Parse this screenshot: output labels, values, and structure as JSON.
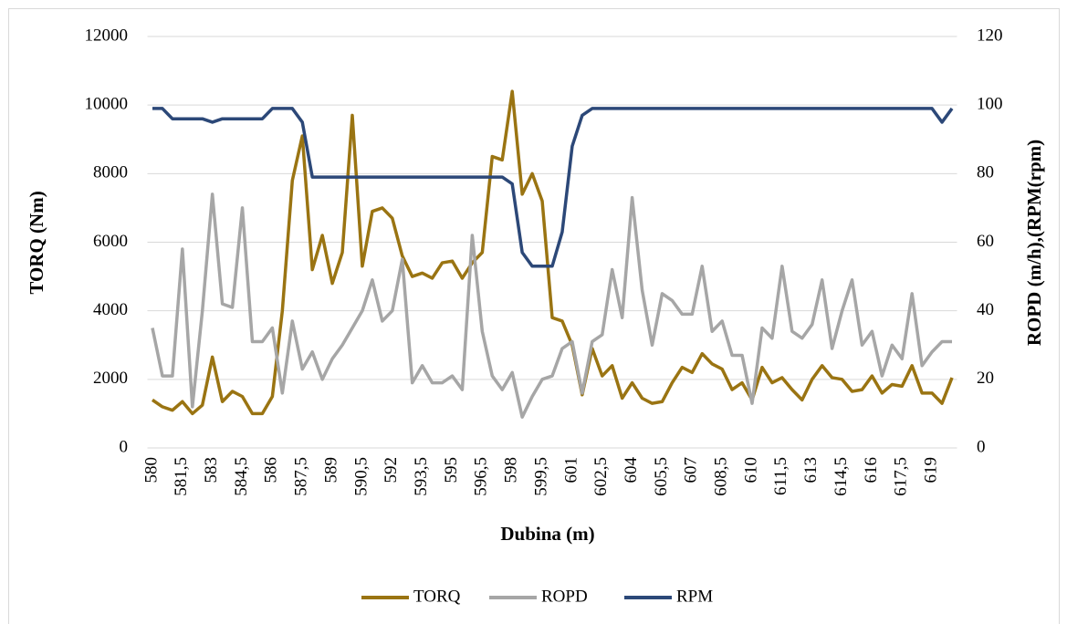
{
  "chart_data": {
    "type": "line",
    "xlabel": "Dubina (m)",
    "ylabel": "TORQ (Nm)",
    "y2label": "ROPD (m/h),(RPM(rpm)",
    "categories": [
      "580",
      null,
      null,
      "581,5",
      null,
      null,
      "583",
      null,
      null,
      "584,5",
      null,
      null,
      "586",
      null,
      null,
      "587,5",
      null,
      null,
      "589",
      null,
      null,
      "590,5",
      null,
      null,
      "592",
      null,
      null,
      "593,5",
      null,
      null,
      "595",
      null,
      null,
      "596,5",
      null,
      null,
      "598",
      null,
      null,
      "599,5",
      null,
      null,
      "601",
      null,
      null,
      "602,5",
      null,
      null,
      "604",
      null,
      null,
      "605,5",
      null,
      null,
      "607",
      null,
      null,
      "608,5",
      null,
      null,
      "610",
      null,
      null,
      "611,5",
      null,
      null,
      "613",
      null,
      null,
      "614,5",
      null,
      null,
      "616",
      null,
      null,
      "617,5",
      null,
      null,
      "619",
      null,
      null
    ],
    "series": [
      {
        "name": "TORQ",
        "color": "#9a7412",
        "axis": "y",
        "values": [
          1400,
          1200,
          1100,
          1350,
          1000,
          1250,
          2650,
          1350,
          1650,
          1500,
          1000,
          1000,
          1500,
          4000,
          7800,
          9100,
          5200,
          6200,
          4800,
          5700,
          9700,
          5300,
          6900,
          7000,
          6700,
          5600,
          5000,
          5100,
          4950,
          5400,
          5450,
          4950,
          5400,
          5700,
          8500,
          8400,
          10400,
          7400,
          8000,
          7200,
          3800,
          3700,
          3000,
          1550,
          2900,
          2100,
          2400,
          1450,
          1900,
          1450,
          1300,
          1350,
          1900,
          2350,
          2200,
          2750,
          2450,
          2300,
          1700,
          1900,
          1400,
          2350,
          1900,
          2050,
          1700,
          1400,
          2000,
          2400,
          2050,
          2000,
          1650,
          1700,
          2100,
          1600,
          1850,
          1800,
          2400,
          1600,
          1600,
          1300,
          2050
        ]
      },
      {
        "name": "ROPD",
        "color": "#a6a6a6",
        "axis": "y2",
        "values": [
          35,
          21,
          21,
          58,
          12,
          40,
          74,
          42,
          41,
          70,
          31,
          31,
          35,
          16,
          37,
          23,
          28,
          20,
          26,
          30,
          35,
          40,
          49,
          37,
          40,
          55,
          19,
          24,
          19,
          19,
          21,
          17,
          62,
          34,
          21,
          17,
          22,
          9,
          15,
          20,
          21,
          29,
          31,
          16,
          31,
          33,
          52,
          38,
          73,
          46,
          30,
          45,
          43,
          39,
          39,
          53,
          34,
          37,
          27,
          27,
          13,
          35,
          32,
          53,
          34,
          32,
          36,
          49,
          29,
          40,
          49,
          30,
          34,
          21,
          30,
          26,
          45,
          24,
          28,
          31,
          31
        ]
      },
      {
        "name": "RPM",
        "color": "#2c4878",
        "axis": "y2",
        "values": [
          99,
          99,
          96,
          96,
          96,
          96,
          95,
          96,
          96,
          96,
          96,
          96,
          99,
          99,
          99,
          95,
          79,
          79,
          79,
          79,
          79,
          79,
          79,
          79,
          79,
          79,
          79,
          79,
          79,
          79,
          79,
          79,
          79,
          79,
          79,
          79,
          77,
          57,
          53,
          53,
          53,
          63,
          88,
          97,
          99,
          99,
          99,
          99,
          99,
          99,
          99,
          99,
          99,
          99,
          99,
          99,
          99,
          99,
          99,
          99,
          99,
          99,
          99,
          99,
          99,
          99,
          99,
          99,
          99,
          99,
          99,
          99,
          99,
          99,
          99,
          99,
          99,
          99,
          99,
          95,
          99
        ]
      }
    ],
    "ylim": [
      0,
      12000
    ],
    "yticks": [
      0,
      2000,
      4000,
      6000,
      8000,
      10000,
      12000
    ],
    "y2lim": [
      0,
      120
    ],
    "y2ticks": [
      0,
      20,
      40,
      60,
      80,
      100,
      120
    ],
    "grid": true,
    "legend": "bottom"
  }
}
